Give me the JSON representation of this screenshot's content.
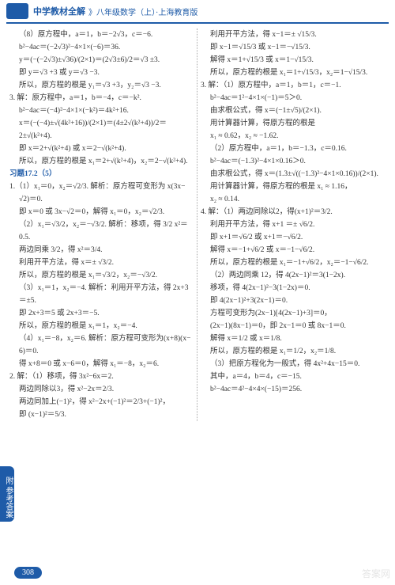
{
  "header": {
    "title": "中学教材全解",
    "subtitle": "》八年级数学（上）·上海教育版"
  },
  "left": [
    {
      "cls": "indent1",
      "t": "（8）原方程中，a＝1，b＝−2√3，c＝−6."
    },
    {
      "cls": "indent1",
      "t": "b²−4ac＝(−2√3)²−4×1×(−6)＝36."
    },
    {
      "cls": "indent1",
      "t": "y＝(−(−2√3)±√36)/(2×1)＝(2√3±6)/2＝√3 ±3."
    },
    {
      "cls": "indent1",
      "t": "即 y＝√3 +3 或 y＝√3 −3."
    },
    {
      "cls": "indent1",
      "t": "所以，原方程的根是 y₁＝√3 +3，y₂＝√3 −3."
    },
    {
      "cls": "",
      "t": "3. 解：原方程中，a＝1，b＝−4，c＝−k²."
    },
    {
      "cls": "indent1",
      "t": "b²−4ac＝(−4)²−4×1×(−k²)＝4k²+16."
    },
    {
      "cls": "indent1",
      "t": "x＝(−(−4)±√(4k²+16))/(2×1)＝(4±2√(k²+4))/2＝2±√(k²+4)."
    },
    {
      "cls": "indent1",
      "t": "即 x＝2+√(k²+4) 或 x＝2−√(k²+4)."
    },
    {
      "cls": "indent1",
      "t": "所以，原方程的根是 x₁＝2+√(k²+4)，x₂＝2−√(k²+4)."
    },
    {
      "cls": "section-title",
      "t": "习题17.2（5）"
    },
    {
      "cls": "",
      "t": "1.（1）x₁＝0，x₂＝√2/3. 解析：原方程可变形为 x(3x−"
    },
    {
      "cls": "indent1",
      "t": "√2)＝0."
    },
    {
      "cls": "indent1",
      "t": "即 x＝0 或 3x−√2＝0，解得 x₁＝0，x₂＝√2/3."
    },
    {
      "cls": "indent1",
      "t": "（2）x₁＝√3/2，x₂＝−√3/2. 解析：移项，得 3/2 x²＝0.5."
    },
    {
      "cls": "indent1",
      "t": "两边同乘 3/2，得 x²＝3/4."
    },
    {
      "cls": "indent1",
      "t": "利用开平方法，得 x＝± √3/2."
    },
    {
      "cls": "indent1",
      "t": "所以，原方程的根是 x₁＝√3/2，x₂＝−√3/2."
    },
    {
      "cls": "indent1",
      "t": "（3）x₁＝1，x₂＝−4. 解析：利用开平方法，得 2x+3"
    },
    {
      "cls": "indent1",
      "t": "＝±5."
    },
    {
      "cls": "indent1",
      "t": "即 2x+3＝5 或 2x+3＝−5."
    },
    {
      "cls": "indent1",
      "t": "所以，原方程的根是 x₁＝1，x₂＝−4."
    },
    {
      "cls": "indent1",
      "t": "（4）x₁＝−8，x₂＝6. 解析：原方程可变形为(x+8)(x−"
    },
    {
      "cls": "indent1",
      "t": "6)＝0."
    },
    {
      "cls": "indent1",
      "t": "得 x+8＝0 或 x−6＝0，解得 x₁＝−8，x₂＝6."
    },
    {
      "cls": "",
      "t": "2. 解：（1）移项，得 3x²−6x＝2."
    },
    {
      "cls": "indent1",
      "t": "两边同除以3，得 x²−2x＝2/3."
    },
    {
      "cls": "indent1",
      "t": "两边同加上(−1)²，得 x²−2x+(−1)²＝2/3+(−1)²，"
    },
    {
      "cls": "indent1",
      "t": "即 (x−1)²＝5/3."
    }
  ],
  "right": [
    {
      "cls": "indent1",
      "t": "利用开平方法，得 x−1＝± √15/3."
    },
    {
      "cls": "indent1",
      "t": "即 x−1＝√15/3 或 x−1＝−√15/3."
    },
    {
      "cls": "indent1",
      "t": "解得 x＝1+√15/3 或 x＝1−√15/3."
    },
    {
      "cls": "indent1",
      "t": "所以，原方程的根是 x₁＝1+√15/3，x₂＝1−√15/3."
    },
    {
      "cls": "",
      "t": "3. 解：（1）原方程中，a＝1，b＝1，c＝−1."
    },
    {
      "cls": "indent1",
      "t": "b²−4ac＝1²−4×1×(−1)＝5＞0."
    },
    {
      "cls": "indent1",
      "t": "由求根公式，得 x＝(−1±√5)/(2×1)."
    },
    {
      "cls": "indent1",
      "t": "用计算器计算，得原方程的根是"
    },
    {
      "cls": "indent1",
      "t": "x₁ ≈ 0.62，x₂ ≈ −1.62."
    },
    {
      "cls": "indent1",
      "t": "（2）原方程中，a＝1，b＝−1.3，c＝0.16."
    },
    {
      "cls": "indent1",
      "t": "b²−4ac＝(−1.3)²−4×1×0.16＞0."
    },
    {
      "cls": "indent1",
      "t": "由求根公式，得 x＝(1.3±√((−1.3)²−4×1×0.16))/(2×1)."
    },
    {
      "cls": "indent1",
      "t": "用计算器计算，得原方程的根是 x₁ ≈ 1.16，"
    },
    {
      "cls": "indent1",
      "t": "x₂ ≈ 0.14."
    },
    {
      "cls": "",
      "t": "4. 解：（1）两边同除以2，得(x+1)²＝3/2."
    },
    {
      "cls": "indent1",
      "t": "利用开平方法，得 x+1 ＝± √6/2."
    },
    {
      "cls": "indent1",
      "t": "即 x+1＝√6/2 或 x+1＝−√6/2."
    },
    {
      "cls": "indent1",
      "t": "解得 x＝−1+√6/2 或 x＝−1−√6/2."
    },
    {
      "cls": "indent1",
      "t": "所以，原方程的根是 x₁＝−1+√6/2，x₂＝−1−√6/2."
    },
    {
      "cls": "indent1",
      "t": "（2）两边同乘 12，得 4(2x−1)²＝3(1−2x)."
    },
    {
      "cls": "indent1",
      "t": "移项，得 4(2x−1)²−3(1−2x)＝0."
    },
    {
      "cls": "indent1",
      "t": "即 4(2x−1)²+3(2x−1)＝0."
    },
    {
      "cls": "indent1",
      "t": "方程可变形为(2x−1)[4(2x−1)+3]＝0，"
    },
    {
      "cls": "indent1",
      "t": "(2x−1)(8x−1)＝0，即 2x−1＝0 或 8x−1＝0."
    },
    {
      "cls": "indent1",
      "t": "解得 x＝1/2 或 x＝1/8."
    },
    {
      "cls": "indent1",
      "t": "所以，原方程的根是 x₁＝1/2，x₂＝1/8."
    },
    {
      "cls": "indent1",
      "t": "（3）把原方程化为一般式，得 4x²+4x−15＝0."
    },
    {
      "cls": "indent1",
      "t": "其中，a＝4，b＝4，c＝−15."
    },
    {
      "cls": "indent1",
      "t": "b²−4ac＝4²−4×4×(−15)＝256."
    }
  ],
  "sideTab": "附 参考答案",
  "pageNumber": "308",
  "watermark": "答案网"
}
